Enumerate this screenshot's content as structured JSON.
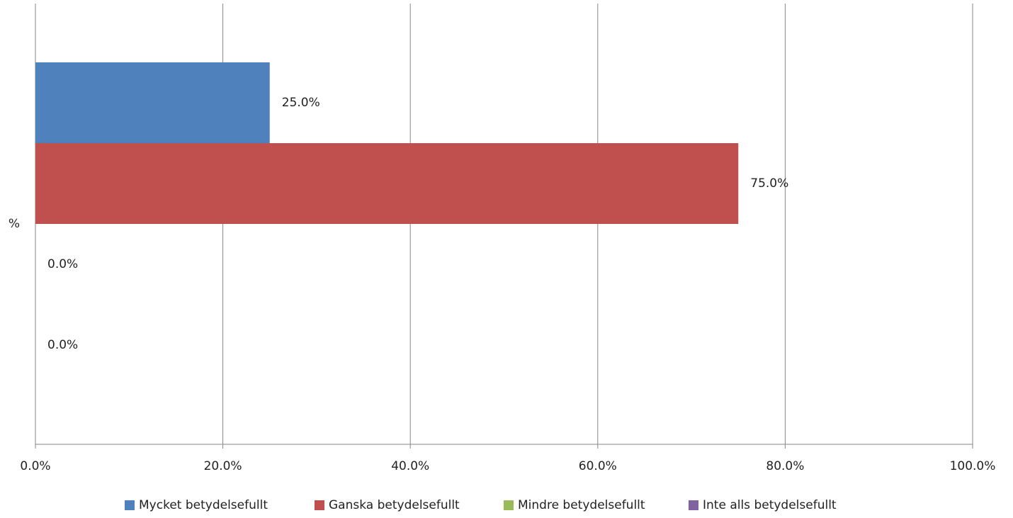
{
  "chart_data": {
    "type": "hbar",
    "categories": [
      "%"
    ],
    "series": [
      {
        "name": "Mycket betydelsefullt",
        "color": "#4f81bd",
        "values": [
          25
        ],
        "value_labels": [
          "25.0%"
        ]
      },
      {
        "name": "Ganska betydelsefullt",
        "color": "#c0504d",
        "values": [
          75
        ],
        "value_labels": [
          "75.0%"
        ]
      },
      {
        "name": "Mindre betydelsefullt",
        "color": "#9bbb59",
        "values": [
          0
        ],
        "value_labels": [
          "0.0%"
        ]
      },
      {
        "name": "Inte alls betydelsefullt",
        "color": "#8064a2",
        "values": [
          0
        ],
        "value_labels": [
          "0.0%"
        ]
      }
    ],
    "xlim": [
      0,
      100
    ],
    "xticks": [
      {
        "value": 0,
        "label": "0.0%"
      },
      {
        "value": 20,
        "label": "20.0%"
      },
      {
        "value": 40,
        "label": "40.0%"
      },
      {
        "value": 60,
        "label": "60.0%"
      },
      {
        "value": 80,
        "label": "80.0%"
      },
      {
        "value": 100,
        "label": "100.0%"
      }
    ],
    "grid": true,
    "legend": "bottom"
  }
}
